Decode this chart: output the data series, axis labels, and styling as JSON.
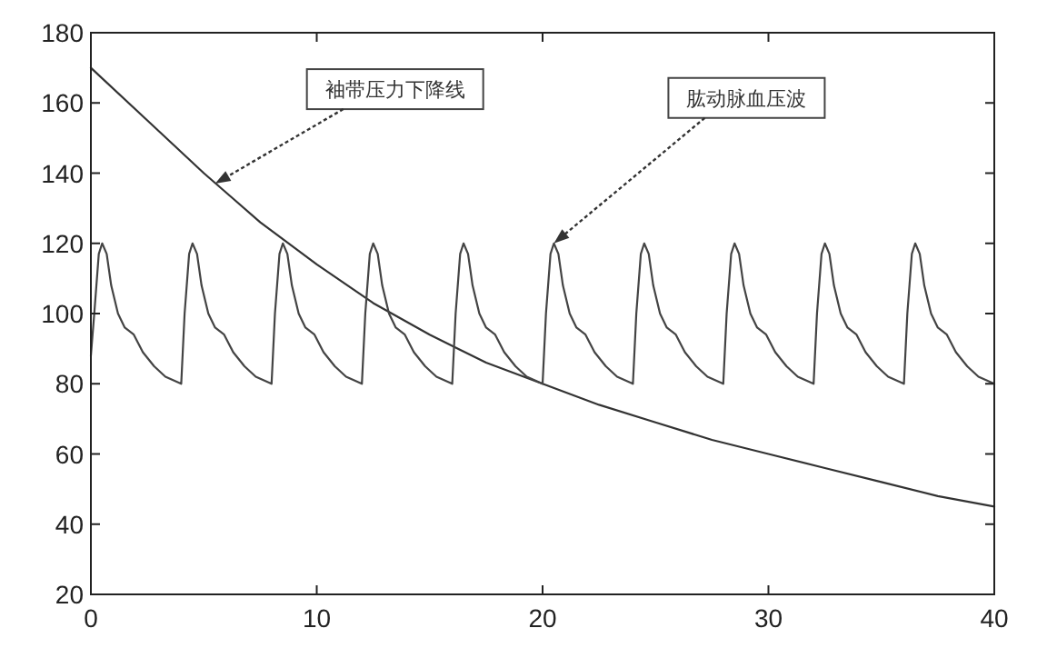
{
  "chart_data": {
    "type": "line",
    "marker": "none",
    "line_style": "solid",
    "grid": false,
    "xlim": [
      0,
      40
    ],
    "xticks": [
      0,
      10,
      20,
      30,
      40
    ],
    "ylim": [
      20,
      180
    ],
    "yticks": [
      20,
      40,
      60,
      80,
      100,
      120,
      140,
      160,
      180
    ],
    "series": [
      {
        "color": "#333333",
        "x": [
          0,
          2.5,
          5,
          7.5,
          10,
          12.5,
          15,
          17.5,
          20,
          22.5,
          25,
          27.5,
          30,
          32.5,
          35,
          37.5,
          40
        ],
        "values": [
          170,
          155,
          140,
          126,
          114,
          103,
          94,
          86,
          80,
          74,
          69,
          64,
          60,
          56,
          52,
          48,
          45
        ]
      },
      {
        "color": "#444444",
        "x": [
          0,
          0.15,
          0.35,
          0.5,
          0.7,
          0.9,
          1.2,
          1.5,
          1.9,
          2.3,
          2.8,
          3.3,
          4,
          4.15,
          4.35,
          4.5,
          4.7,
          4.9,
          5.2,
          5.5,
          5.9,
          6.3,
          6.8,
          7.3,
          8,
          8.15,
          8.35,
          8.5,
          8.7,
          8.9,
          9.2,
          9.5,
          9.9,
          10.3,
          10.8,
          11.3,
          12,
          12.15,
          12.35,
          12.5,
          12.7,
          12.9,
          13.2,
          13.5,
          13.9,
          14.3,
          14.8,
          15.3,
          16,
          16.15,
          16.35,
          16.5,
          16.7,
          16.9,
          17.2,
          17.5,
          17.9,
          18.3,
          18.8,
          19.3,
          20,
          20.15,
          20.35,
          20.5,
          20.7,
          20.9,
          21.2,
          21.5,
          21.9,
          22.3,
          22.8,
          23.3,
          24,
          24.15,
          24.35,
          24.5,
          24.7,
          24.9,
          25.2,
          25.5,
          25.9,
          26.3,
          26.8,
          27.3,
          28,
          28.15,
          28.35,
          28.5,
          28.7,
          28.9,
          29.2,
          29.5,
          29.9,
          30.3,
          30.8,
          31.3,
          32,
          32.15,
          32.35,
          32.5,
          32.7,
          32.9,
          33.2,
          33.5,
          33.9,
          34.3,
          34.8,
          35.3,
          36,
          36.15,
          36.35,
          36.5,
          36.7,
          36.9,
          37.2,
          37.5,
          37.9,
          38.3,
          38.8,
          39.3,
          40
        ],
        "values": [
          88,
          100,
          117,
          120,
          117,
          108,
          100,
          96,
          94,
          89,
          85,
          82,
          80,
          100,
          117,
          120,
          117,
          108,
          100,
          96,
          94,
          89,
          85,
          82,
          80,
          100,
          117,
          120,
          117,
          108,
          100,
          96,
          94,
          89,
          85,
          82,
          80,
          100,
          117,
          120,
          117,
          108,
          100,
          96,
          94,
          89,
          85,
          82,
          80,
          100,
          117,
          120,
          117,
          108,
          100,
          96,
          94,
          89,
          85,
          82,
          80,
          100,
          117,
          120,
          117,
          108,
          100,
          96,
          94,
          89,
          85,
          82,
          80,
          100,
          117,
          120,
          117,
          108,
          100,
          96,
          94,
          89,
          85,
          82,
          80,
          100,
          117,
          120,
          117,
          108,
          100,
          96,
          94,
          89,
          85,
          82,
          80,
          100,
          117,
          120,
          117,
          108,
          100,
          96,
          94,
          89,
          85,
          82,
          80,
          100,
          117,
          120,
          117,
          108,
          100,
          96,
          94,
          89,
          85,
          82,
          80
        ]
      }
    ],
    "annotations": [
      {
        "text": "袖带压力下降线",
        "x": 5.5,
        "y": 137
      },
      {
        "text": "肱动脉血压波",
        "x": 20.5,
        "y": 120
      }
    ]
  }
}
